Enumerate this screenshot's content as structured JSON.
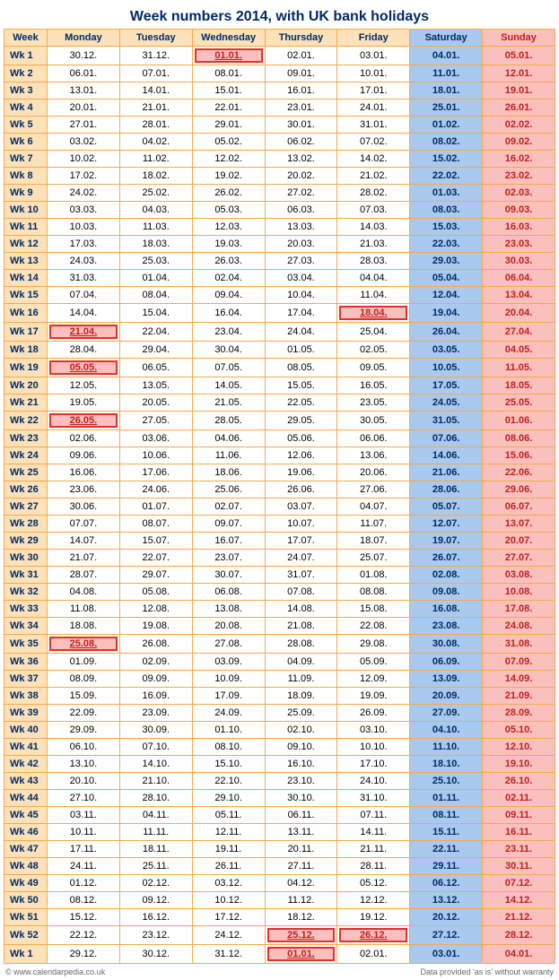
{
  "title": "Week numbers 2014, with UK bank holidays",
  "headers": [
    "Week",
    "Monday",
    "Tuesday",
    "Wednesday",
    "Thursday",
    "Friday",
    "Saturday",
    "Sunday"
  ],
  "colors": {
    "border": "#f7a94a",
    "week_bg": "#fde2b9",
    "sat_bg": "#a9c9ee",
    "sun_bg": "#f9c0bd",
    "holiday_border": "#e03030",
    "holiday_text": "#c02020",
    "title_color": "#002a66"
  },
  "footer": {
    "left": "© www.calendarpedia.co.uk",
    "right": "Data provided 'as is' without warranty"
  },
  "rows": [
    {
      "wk": "Wk 1",
      "d": [
        "30.12.",
        "31.12.",
        "01.01.",
        "02.01.",
        "03.01.",
        "04.01.",
        "05.01."
      ],
      "hol": [
        2
      ]
    },
    {
      "wk": "Wk 2",
      "d": [
        "06.01.",
        "07.01.",
        "08.01.",
        "09.01.",
        "10.01.",
        "11.01.",
        "12.01."
      ],
      "hol": []
    },
    {
      "wk": "Wk 3",
      "d": [
        "13.01.",
        "14.01.",
        "15.01.",
        "16.01.",
        "17.01.",
        "18.01.",
        "19.01."
      ],
      "hol": []
    },
    {
      "wk": "Wk 4",
      "d": [
        "20.01.",
        "21.01.",
        "22.01.",
        "23.01.",
        "24.01.",
        "25.01.",
        "26.01."
      ],
      "hol": []
    },
    {
      "wk": "Wk 5",
      "d": [
        "27.01.",
        "28.01.",
        "29.01.",
        "30.01.",
        "31.01.",
        "01.02.",
        "02.02."
      ],
      "hol": []
    },
    {
      "wk": "Wk 6",
      "d": [
        "03.02.",
        "04.02.",
        "05.02.",
        "06.02.",
        "07.02.",
        "08.02.",
        "09.02."
      ],
      "hol": []
    },
    {
      "wk": "Wk 7",
      "d": [
        "10.02.",
        "11.02.",
        "12.02.",
        "13.02.",
        "14.02.",
        "15.02.",
        "16.02."
      ],
      "hol": []
    },
    {
      "wk": "Wk 8",
      "d": [
        "17.02.",
        "18.02.",
        "19.02.",
        "20.02.",
        "21.02.",
        "22.02.",
        "23.02."
      ],
      "hol": []
    },
    {
      "wk": "Wk 9",
      "d": [
        "24.02.",
        "25.02.",
        "26.02.",
        "27.02.",
        "28.02.",
        "01.03.",
        "02.03."
      ],
      "hol": []
    },
    {
      "wk": "Wk 10",
      "d": [
        "03.03.",
        "04.03.",
        "05.03.",
        "06.03.",
        "07.03.",
        "08.03.",
        "09.03."
      ],
      "hol": []
    },
    {
      "wk": "Wk 11",
      "d": [
        "10.03.",
        "11.03.",
        "12.03.",
        "13.03.",
        "14.03.",
        "15.03.",
        "16.03."
      ],
      "hol": []
    },
    {
      "wk": "Wk 12",
      "d": [
        "17.03.",
        "18.03.",
        "19.03.",
        "20.03.",
        "21.03.",
        "22.03.",
        "23.03."
      ],
      "hol": []
    },
    {
      "wk": "Wk 13",
      "d": [
        "24.03.",
        "25.03.",
        "26.03.",
        "27.03.",
        "28.03.",
        "29.03.",
        "30.03."
      ],
      "hol": []
    },
    {
      "wk": "Wk 14",
      "d": [
        "31.03.",
        "01.04.",
        "02.04.",
        "03.04.",
        "04.04.",
        "05.04.",
        "06.04."
      ],
      "hol": []
    },
    {
      "wk": "Wk 15",
      "d": [
        "07.04.",
        "08.04.",
        "09.04.",
        "10.04.",
        "11.04.",
        "12.04.",
        "13.04."
      ],
      "hol": []
    },
    {
      "wk": "Wk 16",
      "d": [
        "14.04.",
        "15.04.",
        "16.04.",
        "17.04.",
        "18.04.",
        "19.04.",
        "20.04."
      ],
      "hol": [
        4
      ]
    },
    {
      "wk": "Wk 17",
      "d": [
        "21.04.",
        "22.04.",
        "23.04.",
        "24.04.",
        "25.04.",
        "26.04.",
        "27.04."
      ],
      "hol": [
        0
      ]
    },
    {
      "wk": "Wk 18",
      "d": [
        "28.04.",
        "29.04.",
        "30.04.",
        "01.05.",
        "02.05.",
        "03.05.",
        "04.05."
      ],
      "hol": []
    },
    {
      "wk": "Wk 19",
      "d": [
        "05.05.",
        "06.05.",
        "07.05.",
        "08.05.",
        "09.05.",
        "10.05.",
        "11.05."
      ],
      "hol": [
        0
      ]
    },
    {
      "wk": "Wk 20",
      "d": [
        "12.05.",
        "13.05.",
        "14.05.",
        "15.05.",
        "16.05.",
        "17.05.",
        "18.05."
      ],
      "hol": []
    },
    {
      "wk": "Wk 21",
      "d": [
        "19.05.",
        "20.05.",
        "21.05.",
        "22.05.",
        "23.05.",
        "24.05.",
        "25.05."
      ],
      "hol": []
    },
    {
      "wk": "Wk 22",
      "d": [
        "26.05.",
        "27.05.",
        "28.05.",
        "29.05.",
        "30.05.",
        "31.05.",
        "01.06."
      ],
      "hol": [
        0
      ]
    },
    {
      "wk": "Wk 23",
      "d": [
        "02.06.",
        "03.06.",
        "04.06.",
        "05.06.",
        "06.06.",
        "07.06.",
        "08.06."
      ],
      "hol": []
    },
    {
      "wk": "Wk 24",
      "d": [
        "09.06.",
        "10.06.",
        "11.06.",
        "12.06.",
        "13.06.",
        "14.06.",
        "15.06."
      ],
      "hol": []
    },
    {
      "wk": "Wk 25",
      "d": [
        "16.06.",
        "17.06.",
        "18.06.",
        "19.06.",
        "20.06.",
        "21.06.",
        "22.06."
      ],
      "hol": []
    },
    {
      "wk": "Wk 26",
      "d": [
        "23.06.",
        "24.06.",
        "25.06.",
        "26.06.",
        "27.06.",
        "28.06.",
        "29.06."
      ],
      "hol": []
    },
    {
      "wk": "Wk 27",
      "d": [
        "30.06.",
        "01.07.",
        "02.07.",
        "03.07.",
        "04.07.",
        "05.07.",
        "06.07."
      ],
      "hol": []
    },
    {
      "wk": "Wk 28",
      "d": [
        "07.07.",
        "08.07.",
        "09.07.",
        "10.07.",
        "11.07.",
        "12.07.",
        "13.07."
      ],
      "hol": []
    },
    {
      "wk": "Wk 29",
      "d": [
        "14.07.",
        "15.07.",
        "16.07.",
        "17.07.",
        "18.07.",
        "19.07.",
        "20.07."
      ],
      "hol": []
    },
    {
      "wk": "Wk 30",
      "d": [
        "21.07.",
        "22.07.",
        "23.07.",
        "24.07.",
        "25.07.",
        "26.07.",
        "27.07."
      ],
      "hol": []
    },
    {
      "wk": "Wk 31",
      "d": [
        "28.07.",
        "29.07.",
        "30.07.",
        "31.07.",
        "01.08.",
        "02.08.",
        "03.08."
      ],
      "hol": []
    },
    {
      "wk": "Wk 32",
      "d": [
        "04.08.",
        "05.08.",
        "06.08.",
        "07.08.",
        "08.08.",
        "09.08.",
        "10.08."
      ],
      "hol": []
    },
    {
      "wk": "Wk 33",
      "d": [
        "11.08.",
        "12.08.",
        "13.08.",
        "14.08.",
        "15.08.",
        "16.08.",
        "17.08."
      ],
      "hol": []
    },
    {
      "wk": "Wk 34",
      "d": [
        "18.08.",
        "19.08.",
        "20.08.",
        "21.08.",
        "22.08.",
        "23.08.",
        "24.08."
      ],
      "hol": []
    },
    {
      "wk": "Wk 35",
      "d": [
        "25.08.",
        "26.08.",
        "27.08.",
        "28.08.",
        "29.08.",
        "30.08.",
        "31.08."
      ],
      "hol": [
        0
      ]
    },
    {
      "wk": "Wk 36",
      "d": [
        "01.09.",
        "02.09.",
        "03.09.",
        "04.09.",
        "05.09.",
        "06.09.",
        "07.09."
      ],
      "hol": []
    },
    {
      "wk": "Wk 37",
      "d": [
        "08.09.",
        "09.09.",
        "10.09.",
        "11.09.",
        "12.09.",
        "13.09.",
        "14.09."
      ],
      "hol": []
    },
    {
      "wk": "Wk 38",
      "d": [
        "15.09.",
        "16.09.",
        "17.09.",
        "18.09.",
        "19.09.",
        "20.09.",
        "21.09."
      ],
      "hol": []
    },
    {
      "wk": "Wk 39",
      "d": [
        "22.09.",
        "23.09.",
        "24.09.",
        "25.09.",
        "26.09.",
        "27.09.",
        "28.09."
      ],
      "hol": []
    },
    {
      "wk": "Wk 40",
      "d": [
        "29.09.",
        "30.09.",
        "01.10.",
        "02.10.",
        "03.10.",
        "04.10.",
        "05.10."
      ],
      "hol": []
    },
    {
      "wk": "Wk 41",
      "d": [
        "06.10.",
        "07.10.",
        "08.10.",
        "09.10.",
        "10.10.",
        "11.10.",
        "12.10."
      ],
      "hol": []
    },
    {
      "wk": "Wk 42",
      "d": [
        "13.10.",
        "14.10.",
        "15.10.",
        "16.10.",
        "17.10.",
        "18.10.",
        "19.10."
      ],
      "hol": []
    },
    {
      "wk": "Wk 43",
      "d": [
        "20.10.",
        "21.10.",
        "22.10.",
        "23.10.",
        "24.10.",
        "25.10.",
        "26.10."
      ],
      "hol": []
    },
    {
      "wk": "Wk 44",
      "d": [
        "27.10.",
        "28.10.",
        "29.10.",
        "30.10.",
        "31.10.",
        "01.11.",
        "02.11."
      ],
      "hol": []
    },
    {
      "wk": "Wk 45",
      "d": [
        "03.11.",
        "04.11.",
        "05.11.",
        "06.11.",
        "07.11.",
        "08.11.",
        "09.11."
      ],
      "hol": []
    },
    {
      "wk": "Wk 46",
      "d": [
        "10.11.",
        "11.11.",
        "12.11.",
        "13.11.",
        "14.11.",
        "15.11.",
        "16.11."
      ],
      "hol": []
    },
    {
      "wk": "Wk 47",
      "d": [
        "17.11.",
        "18.11.",
        "19.11.",
        "20.11.",
        "21.11.",
        "22.11.",
        "23.11."
      ],
      "hol": []
    },
    {
      "wk": "Wk 48",
      "d": [
        "24.11.",
        "25.11.",
        "26.11.",
        "27.11.",
        "28.11.",
        "29.11.",
        "30.11."
      ],
      "hol": []
    },
    {
      "wk": "Wk 49",
      "d": [
        "01.12.",
        "02.12.",
        "03.12.",
        "04.12.",
        "05.12.",
        "06.12.",
        "07.12."
      ],
      "hol": []
    },
    {
      "wk": "Wk 50",
      "d": [
        "08.12.",
        "09.12.",
        "10.12.",
        "11.12.",
        "12.12.",
        "13.12.",
        "14.12."
      ],
      "hol": []
    },
    {
      "wk": "Wk 51",
      "d": [
        "15.12.",
        "16.12.",
        "17.12.",
        "18.12.",
        "19.12.",
        "20.12.",
        "21.12."
      ],
      "hol": []
    },
    {
      "wk": "Wk 52",
      "d": [
        "22.12.",
        "23.12.",
        "24.12.",
        "25.12.",
        "26.12.",
        "27.12.",
        "28.12."
      ],
      "hol": [
        3,
        4
      ]
    },
    {
      "wk": "Wk 1",
      "d": [
        "29.12.",
        "30.12.",
        "31.12.",
        "01.01.",
        "02.01.",
        "03.01.",
        "04.01."
      ],
      "hol": [
        3
      ]
    }
  ]
}
